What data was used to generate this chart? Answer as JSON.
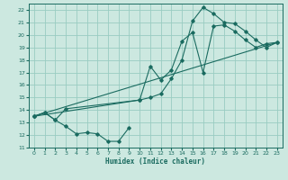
{
  "xlabel": "Humidex (Indice chaleur)",
  "bg_color": "#cce8e0",
  "grid_color": "#99ccc2",
  "line_color": "#1a6b60",
  "xlim": [
    -0.5,
    23.5
  ],
  "ylim": [
    11,
    22.5
  ],
  "yticks": [
    11,
    12,
    13,
    14,
    15,
    16,
    17,
    18,
    19,
    20,
    21,
    22
  ],
  "xticks": [
    0,
    1,
    2,
    3,
    4,
    5,
    6,
    7,
    8,
    9,
    10,
    11,
    12,
    13,
    14,
    15,
    16,
    17,
    18,
    19,
    20,
    21,
    22,
    23
  ],
  "line1_x": [
    0,
    1,
    2,
    3,
    4,
    5,
    6,
    7,
    8,
    9
  ],
  "line1_y": [
    13.5,
    13.8,
    13.2,
    12.7,
    12.1,
    12.2,
    12.1,
    11.5,
    11.5,
    12.6
  ],
  "line2_x": [
    0,
    1,
    2,
    3,
    10,
    11,
    12,
    13,
    14,
    15,
    16,
    17,
    18,
    19,
    20,
    21,
    22,
    23
  ],
  "line2_y": [
    13.5,
    13.8,
    13.2,
    14.1,
    14.8,
    17.5,
    16.4,
    17.2,
    19.5,
    20.2,
    17.0,
    20.7,
    20.8,
    20.3,
    19.6,
    19.0,
    19.3,
    19.4
  ],
  "line3_x": [
    0,
    10,
    11,
    12,
    13,
    14,
    15,
    16,
    17,
    18,
    19,
    20,
    21,
    22,
    23
  ],
  "line3_y": [
    13.5,
    14.8,
    15.0,
    15.3,
    16.5,
    18.0,
    21.1,
    22.2,
    21.7,
    21.0,
    20.9,
    20.3,
    19.6,
    19.0,
    19.4
  ],
  "line4_x": [
    0,
    23
  ],
  "line4_y": [
    13.5,
    19.4
  ]
}
